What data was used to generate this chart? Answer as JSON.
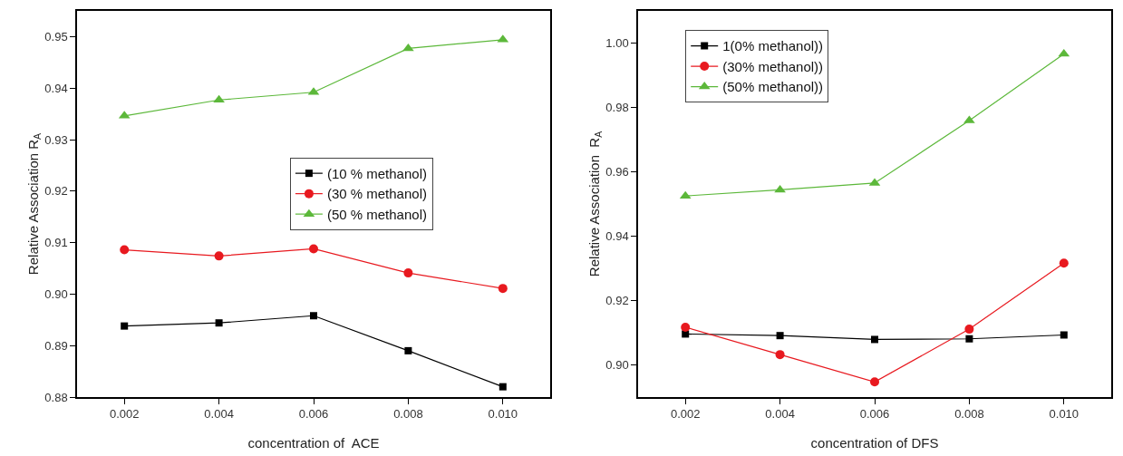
{
  "chart_data": [
    {
      "type": "line",
      "xlabel": "concentration of  ACE",
      "ylabel": "Relative Association R$_{A}$",
      "x": [
        0.002,
        0.004,
        0.006,
        0.008,
        0.01
      ],
      "xlim": [
        0.001,
        0.011
      ],
      "xticks": [
        {
          "value": 0.002,
          "label": "0.002"
        },
        {
          "value": 0.004,
          "label": "0.004"
        },
        {
          "value": 0.006,
          "label": "0.006"
        },
        {
          "value": 0.008,
          "label": "0.008"
        },
        {
          "value": 0.01,
          "label": "0.010"
        }
      ],
      "ylim": [
        0.88,
        0.955
      ],
      "yticks": [
        {
          "value": 0.88,
          "label": "0.88"
        },
        {
          "value": 0.89,
          "label": "0.89"
        },
        {
          "value": 0.9,
          "label": "0.90"
        },
        {
          "value": 0.91,
          "label": "0.91"
        },
        {
          "value": 0.92,
          "label": "0.92"
        },
        {
          "value": 0.93,
          "label": "0.93"
        },
        {
          "value": 0.94,
          "label": "0.94"
        },
        {
          "value": 0.95,
          "label": "0.95"
        }
      ],
      "grid": false,
      "legend": "center",
      "series": [
        {
          "name": "(10 % methanol)",
          "color": "#000000",
          "marker": "square",
          "values": [
            0.8938,
            0.8944,
            0.8958,
            0.889,
            0.882
          ]
        },
        {
          "name": "(30 % methanol)",
          "color": "#e8191f",
          "marker": "circle",
          "values": [
            0.9086,
            0.9074,
            0.9088,
            0.9041,
            0.9011
          ]
        },
        {
          "name": "(50 % methanol)",
          "color": "#5cb83a",
          "marker": "triangle",
          "values": [
            0.9346,
            0.9377,
            0.9392,
            0.9477,
            0.9494
          ]
        }
      ]
    },
    {
      "type": "line",
      "xlabel": "concentration of DFS",
      "ylabel": "Relative Association  R$_{A}$",
      "x": [
        0.002,
        0.004,
        0.006,
        0.008,
        0.01
      ],
      "xlim": [
        0.001,
        0.011
      ],
      "xticks": [
        {
          "value": 0.002,
          "label": "0.002"
        },
        {
          "value": 0.004,
          "label": "0.004"
        },
        {
          "value": 0.006,
          "label": "0.006"
        },
        {
          "value": 0.008,
          "label": "0.008"
        },
        {
          "value": 0.01,
          "label": "0.010"
        }
      ],
      "ylim": [
        0.89,
        1.01
      ],
      "yticks": [
        {
          "value": 0.9,
          "label": "0.90"
        },
        {
          "value": 0.92,
          "label": "0.92"
        },
        {
          "value": 0.94,
          "label": "0.94"
        },
        {
          "value": 0.96,
          "label": "0.96"
        },
        {
          "value": 0.98,
          "label": "0.98"
        },
        {
          "value": 1.0,
          "label": "1.00"
        }
      ],
      "grid": false,
      "legend": "top left",
      "series": [
        {
          "name": "1(0% methanol))",
          "color": "#000000",
          "marker": "square",
          "values": [
            0.9096,
            0.9091,
            0.9079,
            0.9081,
            0.9093
          ]
        },
        {
          "name": "(30% methanol))",
          "color": "#e8191f",
          "marker": "circle",
          "values": [
            0.9117,
            0.9032,
            0.8947,
            0.9111,
            0.9316
          ]
        },
        {
          "name": "(50% methanol))",
          "color": "#5cb83a",
          "marker": "triangle",
          "values": [
            0.9525,
            0.9544,
            0.9565,
            0.9759,
            0.9966
          ]
        }
      ]
    }
  ]
}
